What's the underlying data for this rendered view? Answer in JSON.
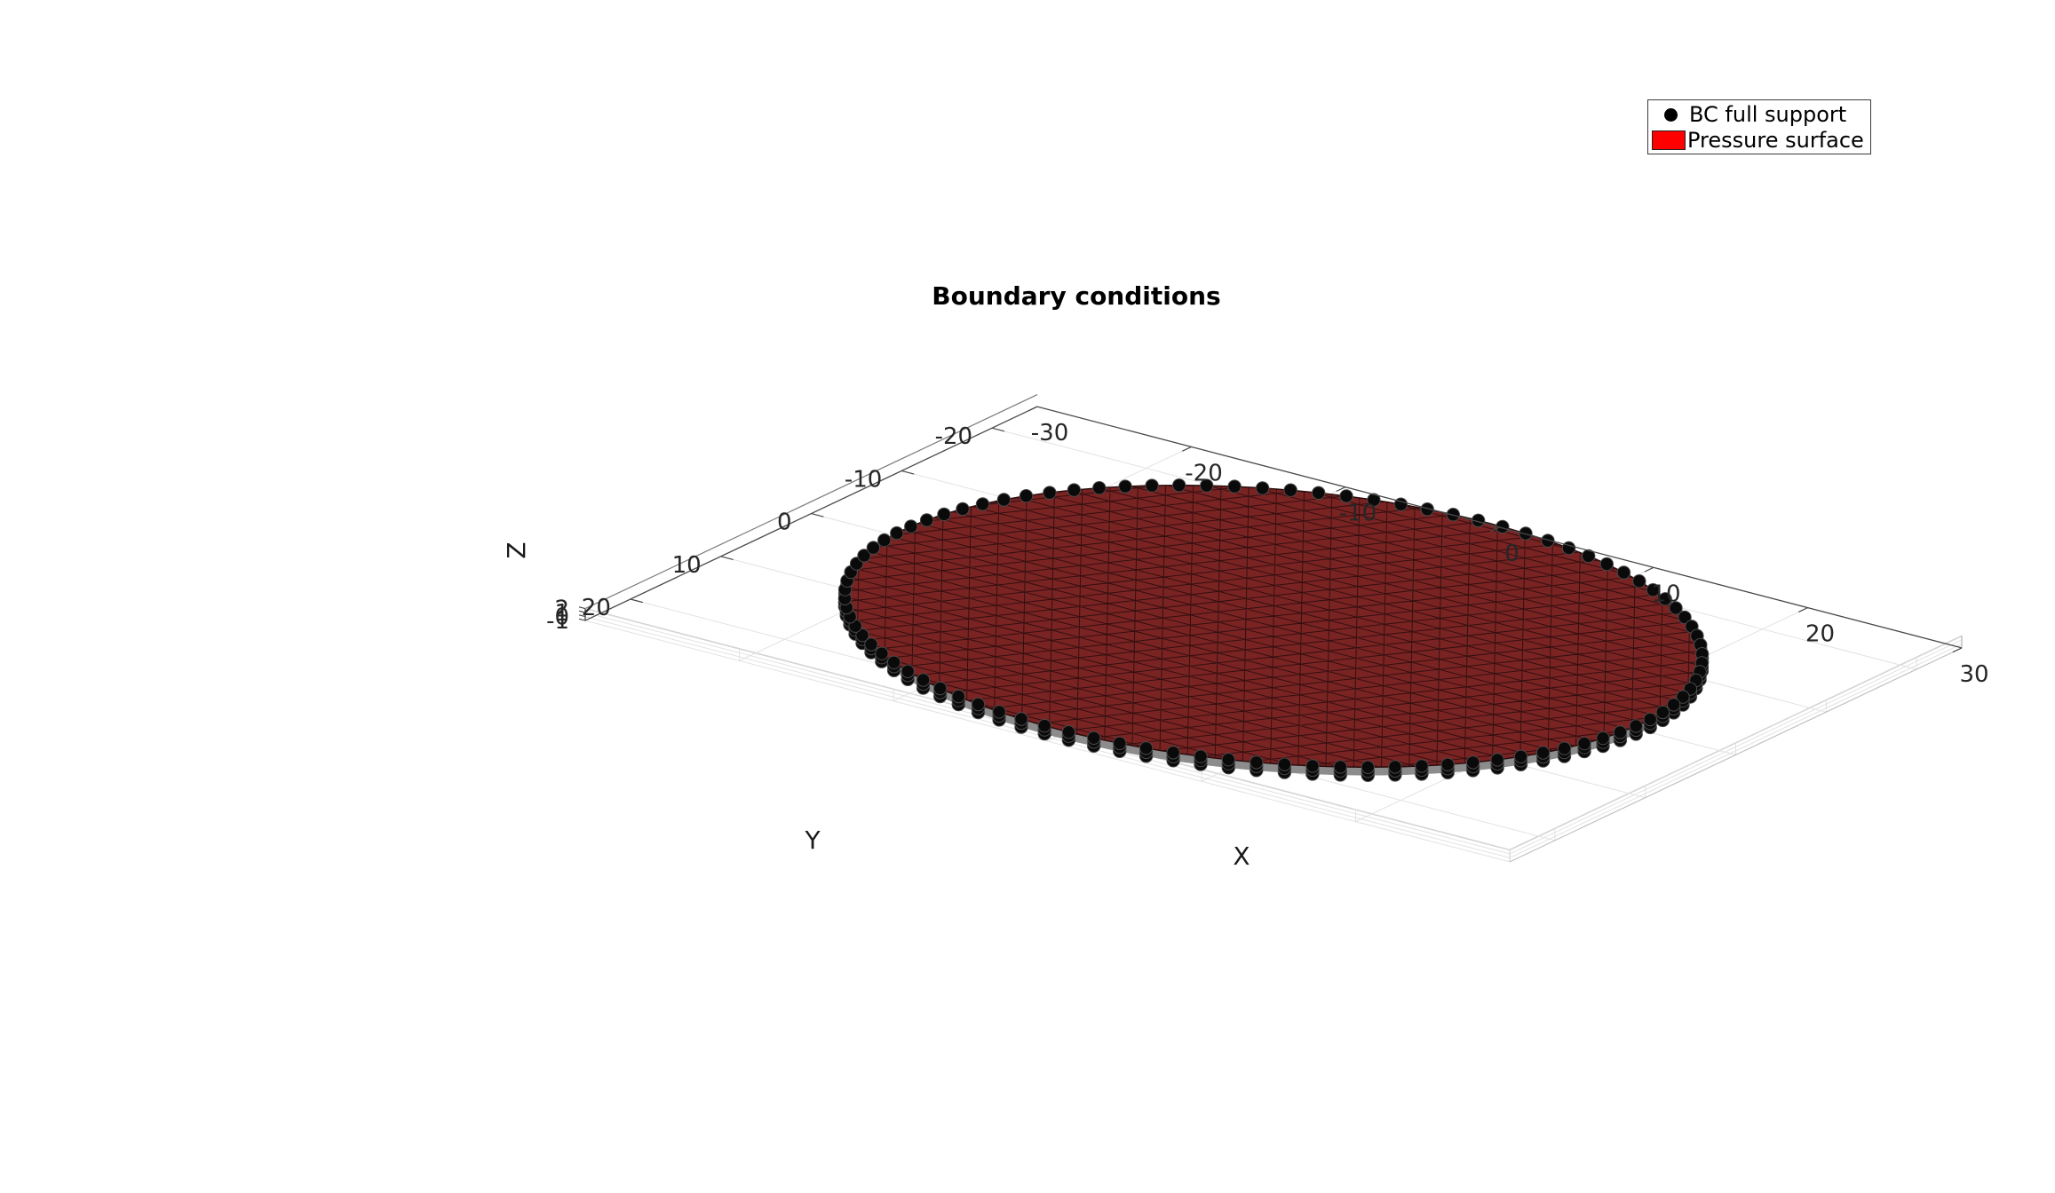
{
  "chart_data": {
    "type": "scatter",
    "title": "Boundary conditions",
    "xlabel": "X",
    "ylabel": "Y",
    "zlabel": "Z",
    "xlim": [
      -30,
      30
    ],
    "ylim": [
      -25,
      25
    ],
    "zlim": [
      -1,
      2
    ],
    "xticks": [
      "-30",
      "-20",
      "-10",
      "0",
      "10",
      "20",
      "30"
    ],
    "yticks": [
      "-20",
      "-10",
      "0",
      "10",
      "20"
    ],
    "zticks": [
      "-1",
      "0",
      "1",
      "2"
    ],
    "grid": true,
    "legend_position": "top-right",
    "disc": {
      "radius": 24,
      "z_bottom": -1,
      "z_top": 1
    },
    "series": [
      {
        "name": "BC full support",
        "kind": "markers",
        "color": "#000000"
      },
      {
        "name": "Pressure surface",
        "kind": "surface",
        "color": "#ff0000",
        "render_color": "#7a2323"
      }
    ]
  },
  "legend": {
    "items": [
      {
        "label": "BC full support",
        "marker": "dot",
        "color": "#000000"
      },
      {
        "label": "Pressure surface",
        "marker": "patch",
        "color": "#ff0000"
      }
    ]
  }
}
